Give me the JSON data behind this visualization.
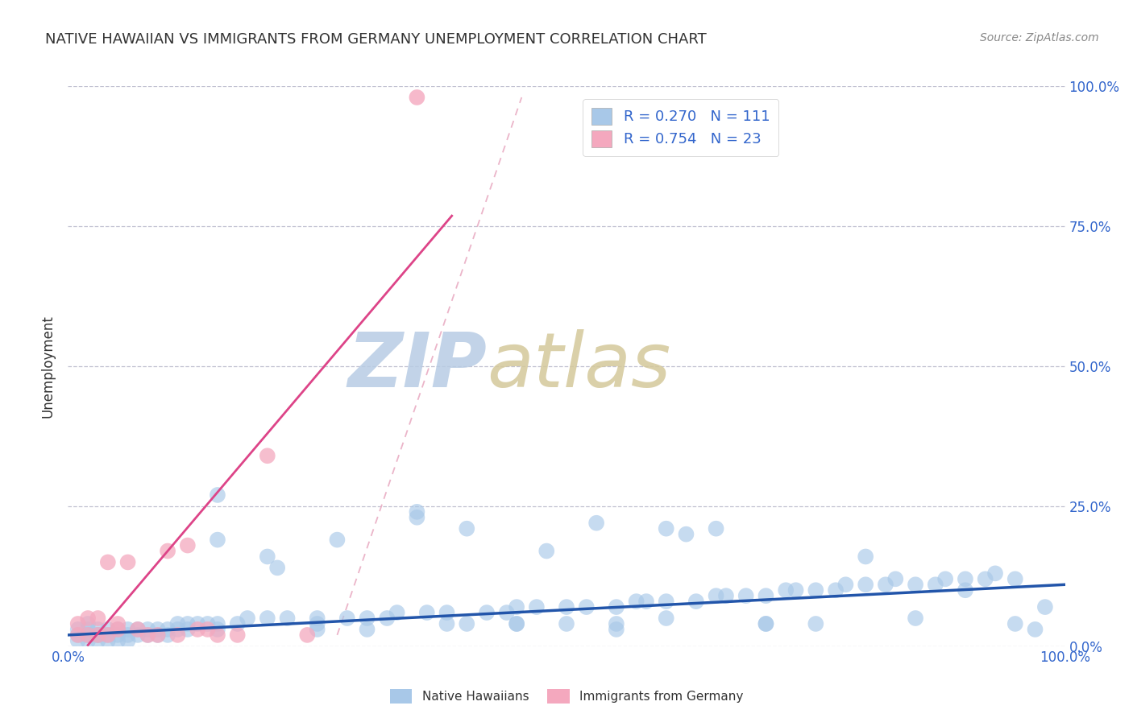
{
  "title": "NATIVE HAWAIIAN VS IMMIGRANTS FROM GERMANY UNEMPLOYMENT CORRELATION CHART",
  "source_text": "Source: ZipAtlas.com",
  "ylabel": "Unemployment",
  "y_tick_labels": [
    "0.0%",
    "25.0%",
    "50.0%",
    "75.0%",
    "100.0%"
  ],
  "y_ticks": [
    0.0,
    0.25,
    0.5,
    0.75,
    1.0
  ],
  "x_lim": [
    0,
    1.0
  ],
  "y_lim": [
    0,
    1.0
  ],
  "blue_color": "#a8c8e8",
  "pink_color": "#f4a8be",
  "blue_line_color": "#2255aa",
  "pink_line_color": "#dd4488",
  "diag_color": "#e8a8c0",
  "grid_color": "#c0c0d0",
  "text_color": "#3366cc",
  "title_color": "#333333",
  "source_color": "#888888",
  "watermark_zip_color": "#c8d8ee",
  "watermark_atlas_color": "#d0c8a8",
  "legend_blue_label": "R = 0.270   N = 111",
  "legend_pink_label": "R = 0.754   N = 23",
  "legend_native": "Native Hawaiians",
  "legend_immigrants": "Immigrants from Germany",
  "blue_intercept": 0.02,
  "blue_slope": 0.09,
  "pink_intercept": -0.04,
  "pink_slope": 2.1,
  "blue_scatter_x": [
    0.01,
    0.01,
    0.01,
    0.02,
    0.02,
    0.02,
    0.02,
    0.02,
    0.03,
    0.03,
    0.03,
    0.03,
    0.04,
    0.04,
    0.04,
    0.05,
    0.05,
    0.05,
    0.06,
    0.06,
    0.06,
    0.07,
    0.07,
    0.08,
    0.08,
    0.09,
    0.09,
    0.1,
    0.1,
    0.11,
    0.11,
    0.12,
    0.12,
    0.13,
    0.14,
    0.15,
    0.15,
    0.17,
    0.18,
    0.2,
    0.21,
    0.22,
    0.25,
    0.27,
    0.28,
    0.3,
    0.32,
    0.33,
    0.35,
    0.36,
    0.38,
    0.4,
    0.42,
    0.44,
    0.45,
    0.47,
    0.48,
    0.5,
    0.52,
    0.53,
    0.55,
    0.57,
    0.58,
    0.6,
    0.62,
    0.63,
    0.65,
    0.66,
    0.68,
    0.7,
    0.72,
    0.73,
    0.75,
    0.77,
    0.78,
    0.8,
    0.82,
    0.83,
    0.85,
    0.87,
    0.88,
    0.9,
    0.92,
    0.93,
    0.95,
    0.97,
    0.98,
    0.15,
    0.2,
    0.25,
    0.3,
    0.35,
    0.4,
    0.45,
    0.5,
    0.55,
    0.6,
    0.65,
    0.7,
    0.75,
    0.8,
    0.85,
    0.9,
    0.95,
    0.15,
    0.25,
    0.38,
    0.45,
    0.6,
    0.7,
    0.55
  ],
  "blue_scatter_y": [
    0.01,
    0.02,
    0.03,
    0.01,
    0.02,
    0.02,
    0.03,
    0.04,
    0.01,
    0.02,
    0.02,
    0.03,
    0.01,
    0.02,
    0.03,
    0.01,
    0.02,
    0.03,
    0.01,
    0.02,
    0.03,
    0.02,
    0.03,
    0.02,
    0.03,
    0.02,
    0.03,
    0.02,
    0.03,
    0.03,
    0.04,
    0.03,
    0.04,
    0.04,
    0.04,
    0.03,
    0.04,
    0.04,
    0.05,
    0.05,
    0.14,
    0.05,
    0.05,
    0.19,
    0.05,
    0.05,
    0.05,
    0.06,
    0.24,
    0.06,
    0.06,
    0.21,
    0.06,
    0.06,
    0.07,
    0.07,
    0.17,
    0.07,
    0.07,
    0.22,
    0.07,
    0.08,
    0.08,
    0.08,
    0.2,
    0.08,
    0.09,
    0.09,
    0.09,
    0.09,
    0.1,
    0.1,
    0.1,
    0.1,
    0.11,
    0.11,
    0.11,
    0.12,
    0.11,
    0.11,
    0.12,
    0.12,
    0.12,
    0.13,
    0.12,
    0.03,
    0.07,
    0.19,
    0.16,
    0.03,
    0.03,
    0.23,
    0.04,
    0.04,
    0.04,
    0.03,
    0.05,
    0.21,
    0.04,
    0.04,
    0.16,
    0.05,
    0.1,
    0.04,
    0.27,
    0.04,
    0.04,
    0.04,
    0.21,
    0.04,
    0.04
  ],
  "pink_scatter_x": [
    0.01,
    0.01,
    0.02,
    0.02,
    0.03,
    0.03,
    0.04,
    0.04,
    0.05,
    0.05,
    0.06,
    0.07,
    0.08,
    0.09,
    0.1,
    0.11,
    0.12,
    0.13,
    0.14,
    0.15,
    0.17,
    0.2,
    0.24
  ],
  "pink_scatter_y": [
    0.02,
    0.04,
    0.02,
    0.05,
    0.02,
    0.05,
    0.02,
    0.15,
    0.03,
    0.04,
    0.15,
    0.03,
    0.02,
    0.02,
    0.17,
    0.02,
    0.18,
    0.03,
    0.03,
    0.02,
    0.02,
    0.34,
    0.02
  ]
}
